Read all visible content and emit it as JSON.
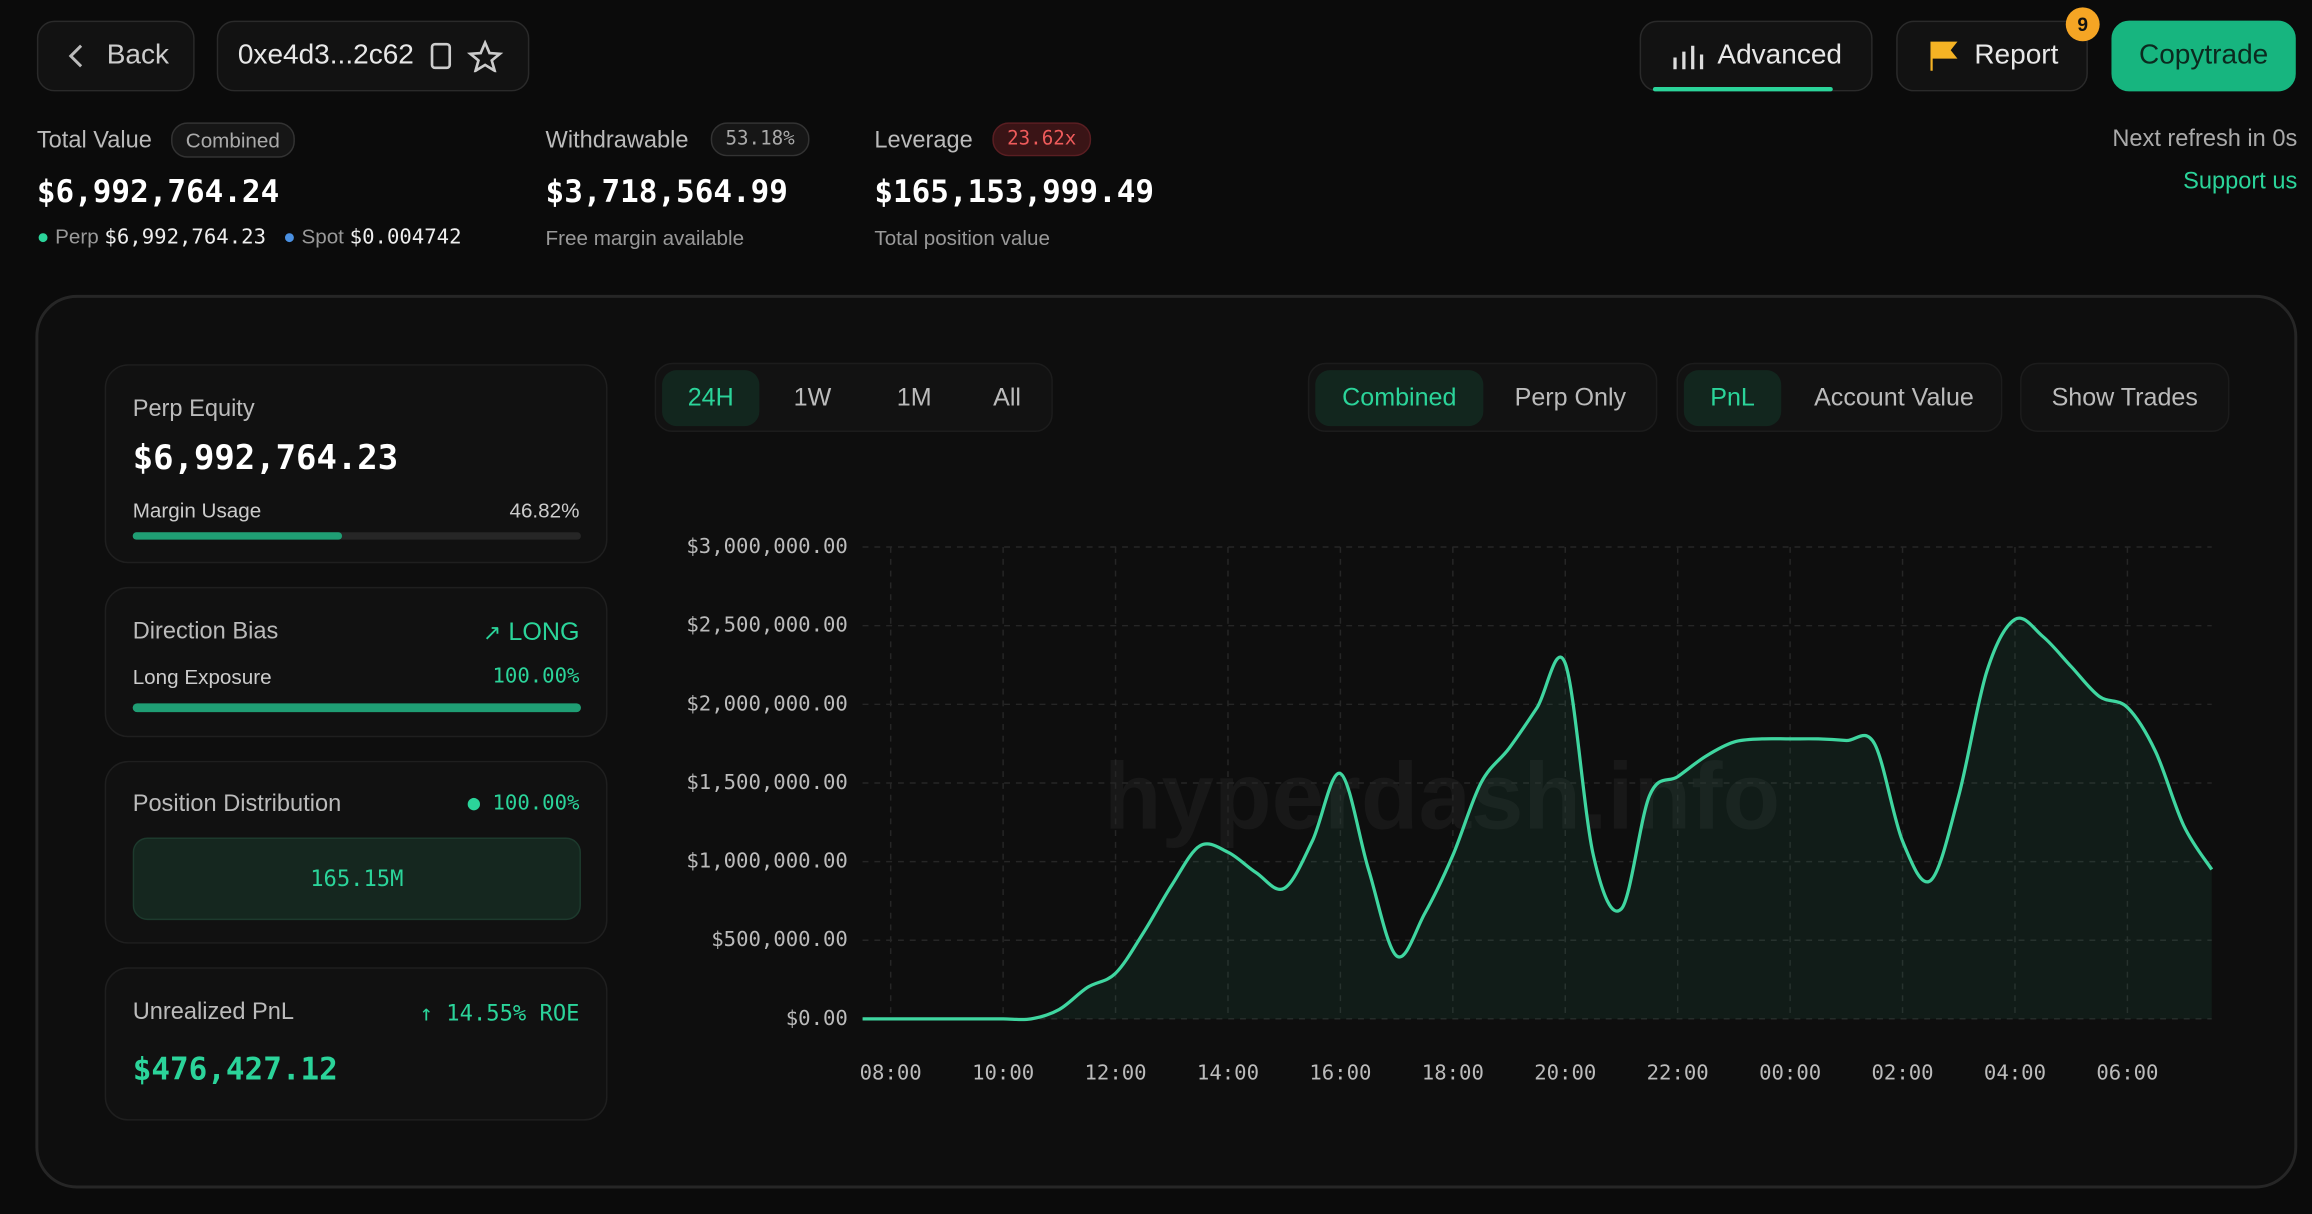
{
  "header": {
    "back": "Back",
    "address": "0xe4d3...2c62",
    "advanced": "Advanced",
    "report": "Report",
    "report_badge": "9",
    "copytrade": "Copytrade"
  },
  "stats": {
    "total_value": {
      "label": "Total Value",
      "tag": "Combined",
      "value": "$6,992,764.24",
      "perp_label": "Perp",
      "perp_value": "$6,992,764.23",
      "spot_label": "Spot",
      "spot_value": "$0.004742"
    },
    "withdrawable": {
      "label": "Withdrawable",
      "tag": "53.18%",
      "value": "$3,718,564.99",
      "note": "Free margin available"
    },
    "leverage": {
      "label": "Leverage",
      "tag": "23.62x",
      "value": "$165,153,999.49",
      "note": "Total position value"
    },
    "refresh": "Next refresh in 0s",
    "support": "Support us"
  },
  "cards": {
    "perp_equity": {
      "label": "Perp Equity",
      "value": "$6,992,764.23",
      "usage_label": "Margin Usage",
      "usage": {
        "value": 46.82,
        "label": "46.82%"
      }
    },
    "direction": {
      "label": "Direction Bias",
      "bias": "LONG",
      "exposure_label": "Long Exposure",
      "exposure": {
        "value": 100,
        "label": "100.00%"
      }
    },
    "distribution": {
      "label": "Position Distribution",
      "share": {
        "value": 100,
        "label": "100.00%"
      },
      "block": "165.15M"
    },
    "unrealized": {
      "label": "Unrealized PnL",
      "roe": "14.55% ROE",
      "value": "$476,427.12"
    }
  },
  "tabs": {
    "range": [
      "24H",
      "1W",
      "1M",
      "All"
    ],
    "mode": [
      "Combined",
      "Perp Only"
    ],
    "metric": [
      "PnL",
      "Account Value"
    ],
    "show_trades": "Show Trades"
  },
  "chart_data": {
    "type": "line",
    "watermark": "hyperdash.info",
    "categories": [
      null,
      "08:00",
      null,
      null,
      null,
      "10:00",
      null,
      null,
      null,
      "12:00",
      null,
      null,
      null,
      "14:00",
      null,
      null,
      null,
      "16:00",
      null,
      null,
      null,
      "18:00",
      null,
      null,
      null,
      "20:00",
      null,
      null,
      null,
      "22:00",
      null,
      null,
      null,
      "00:00",
      null,
      null,
      null,
      "02:00",
      null,
      null,
      null,
      "04:00",
      null,
      null,
      null,
      "06:00",
      null,
      null,
      null
    ],
    "series": [
      {
        "name": "PnL",
        "color": "#3fd6a0",
        "values": [
          0,
          0,
          0,
          0,
          0,
          0,
          0,
          60000,
          200000,
          290000,
          550000,
          850000,
          1100000,
          1060000,
          930000,
          830000,
          1130000,
          1560000,
          950000,
          400000,
          670000,
          1040000,
          1500000,
          1720000,
          1980000,
          2260000,
          1040000,
          700000,
          1420000,
          1540000,
          1670000,
          1760000,
          1780000,
          1780000,
          1780000,
          1770000,
          1750000,
          1130000,
          880000,
          1420000,
          2210000,
          2540000,
          2430000,
          2240000,
          2050000,
          1980000,
          1700000,
          1230000,
          950000
        ]
      }
    ],
    "ylim": [
      0,
      3000000
    ],
    "yticks": [
      {
        "value": 0,
        "label": "$0.00"
      },
      {
        "value": 500000,
        "label": "$500,000.00"
      },
      {
        "value": 1000000,
        "label": "$1,000,000.00"
      },
      {
        "value": 1500000,
        "label": "$1,500,000.00"
      },
      {
        "value": 2000000,
        "label": "$2,000,000.00"
      },
      {
        "value": 2500000,
        "label": "$2,500,000.00"
      },
      {
        "value": 3000000,
        "label": "$3,000,000.00"
      }
    ],
    "grid": true
  }
}
